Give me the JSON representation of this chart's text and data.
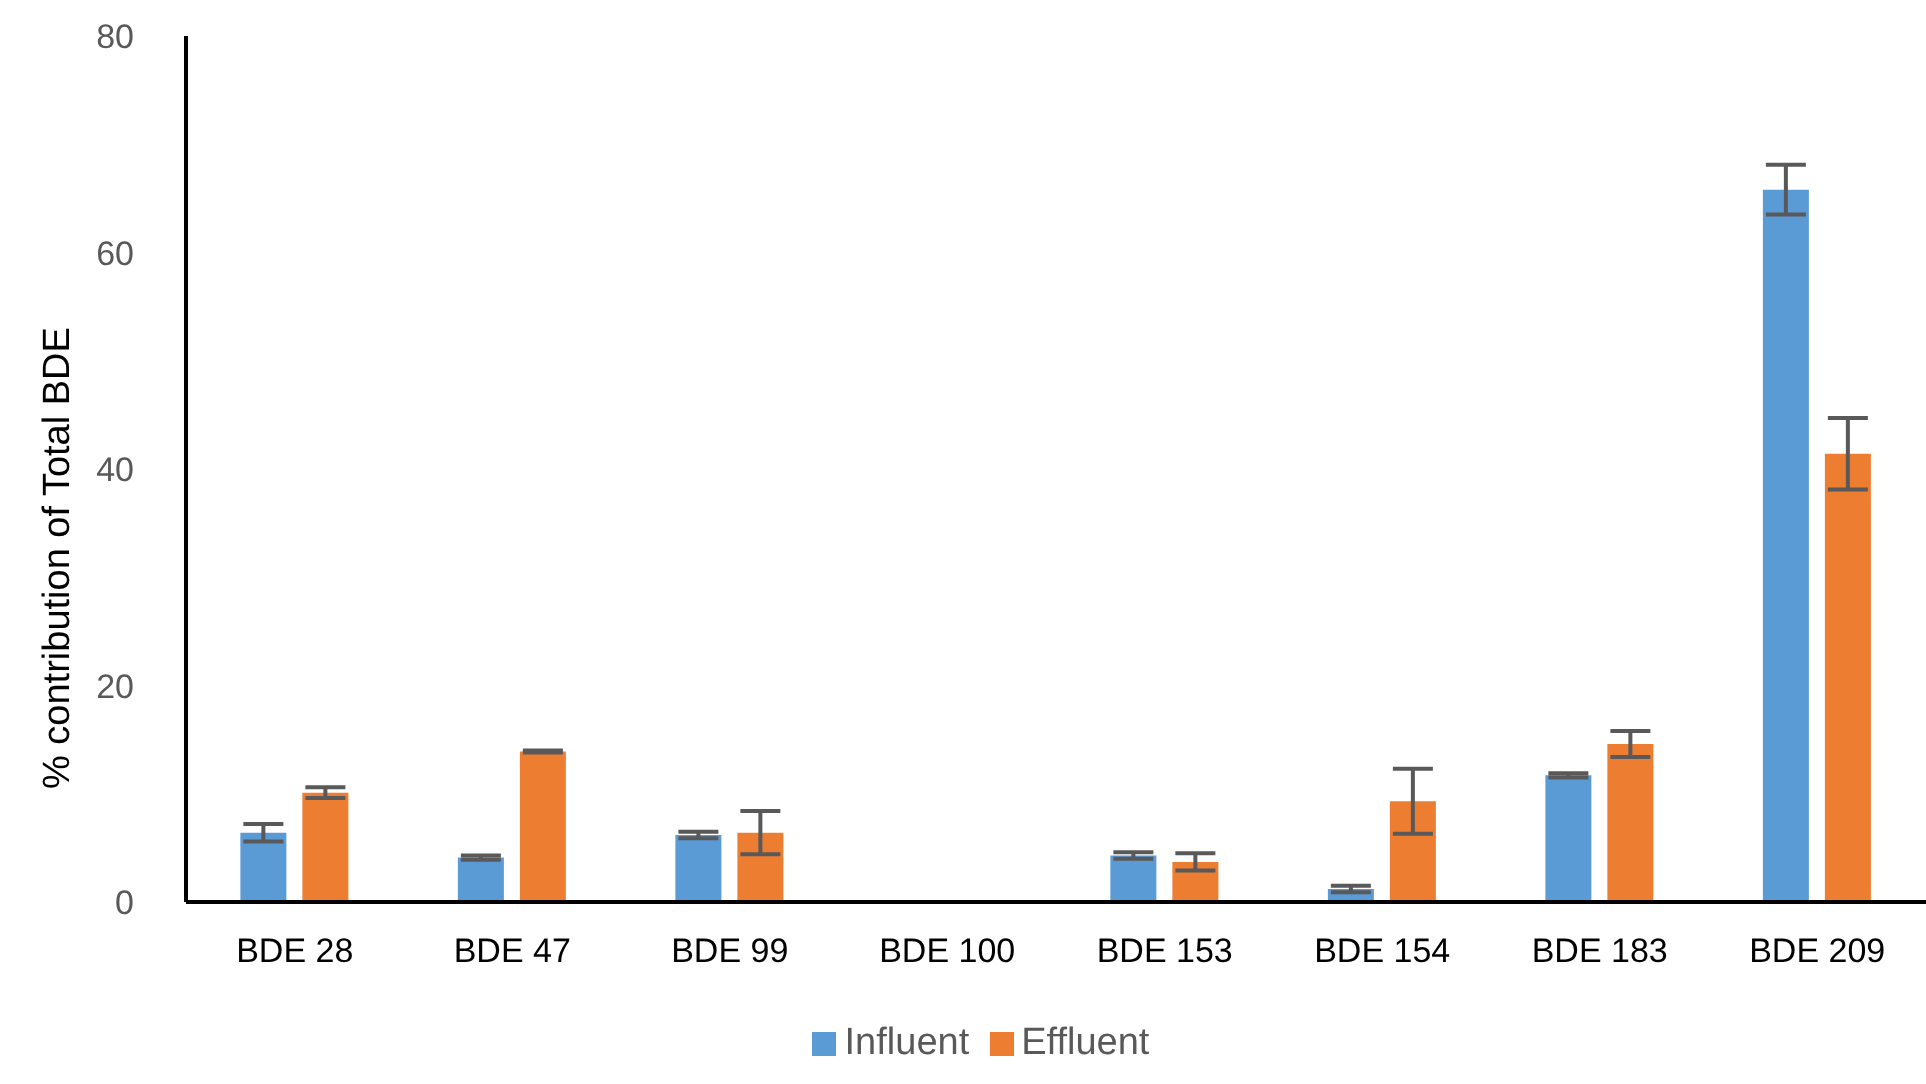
{
  "chart_data": {
    "type": "bar",
    "ylabel": "% contribution of Total BDE",
    "categories": [
      "BDE 28",
      "BDE 47",
      "BDE 99",
      "BDE 100",
      "BDE 153",
      "BDE 154",
      "BDE 183",
      "BDE 209"
    ],
    "series": [
      {
        "name": "Influent",
        "color": "#5b9bd5",
        "values": [
          6.4,
          4.1,
          6.2,
          null,
          4.3,
          1.2,
          11.7,
          65.8
        ],
        "errors": [
          0.8,
          0.2,
          0.3,
          null,
          0.3,
          0.3,
          0.2,
          2.3
        ]
      },
      {
        "name": "Effluent",
        "color": "#ed7d31",
        "values": [
          10.1,
          13.9,
          6.4,
          null,
          3.7,
          9.3,
          14.6,
          41.4
        ],
        "errors": [
          0.5,
          0.1,
          2.0,
          null,
          0.8,
          3.0,
          1.2,
          3.3
        ]
      }
    ],
    "ylim": [
      0,
      80
    ],
    "yticks": [
      0,
      20,
      40,
      60,
      80
    ],
    "grid": false,
    "legend": "bottom"
  }
}
